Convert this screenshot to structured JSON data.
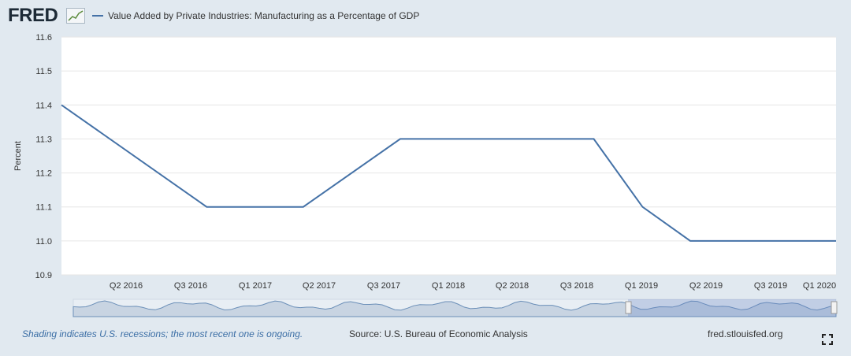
{
  "header": {
    "logo_text": "FRED",
    "legend_label": "Value Added by Private Industries: Manufacturing as a Percentage of GDP"
  },
  "footer": {
    "recession_note": "Shading indicates U.S. recessions; the most recent one is ongoing.",
    "source": "Source: U.S. Bureau of Economic Analysis",
    "site": "fred.stlouisfed.org"
  },
  "icons": {
    "logo_graph": "line-chart-icon",
    "fullscreen": "fullscreen-icon"
  },
  "colors": {
    "series": "#4572a7",
    "background": "#e1e9f0",
    "plot_bg": "#ffffff",
    "navigator_fill": "#c8d4e2"
  },
  "chart_data": {
    "type": "line",
    "title": "",
    "ylabel": "Percent",
    "xlabel": "",
    "ylim": [
      10.9,
      11.6
    ],
    "yticks": [
      "10.9",
      "11.0",
      "11.1",
      "11.2",
      "11.3",
      "11.4",
      "11.5",
      "11.6"
    ],
    "xticks": [
      "Q2 2016",
      "Q3 2016",
      "Q1 2017",
      "Q2 2017",
      "Q3 2017",
      "Q1 2018",
      "Q2 2018",
      "Q3 2018",
      "Q1 2019",
      "Q2 2019",
      "Q3 2019",
      "Q1 2020"
    ],
    "grid": true,
    "series": [
      {
        "x": [
          "2016-01-01",
          "2016-10-01",
          "2017-04-01",
          "2017-10-01",
          "2018-04-01",
          "2018-10-01",
          "2019-01-01",
          "2019-04-01",
          "2019-10-01",
          "2020-01-01"
        ],
        "values": [
          11.4,
          11.1,
          11.1,
          11.3,
          11.3,
          11.3,
          11.1,
          11.0,
          11.0,
          11.0
        ]
      }
    ]
  }
}
